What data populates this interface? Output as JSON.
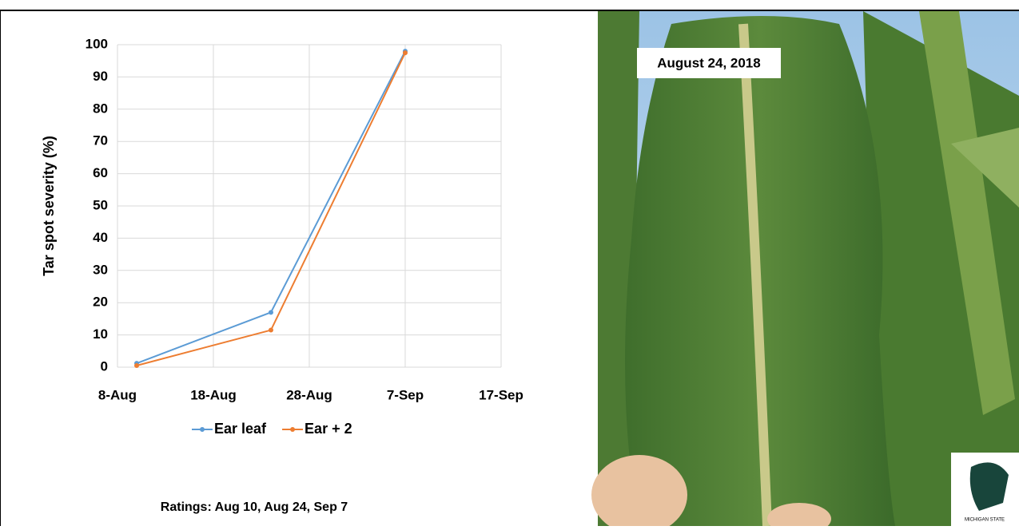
{
  "chart_data": {
    "type": "line",
    "y_label": "Tar spot severity (%)",
    "x": [
      "10-Aug",
      "24-Aug",
      "7-Sep"
    ],
    "series": [
      {
        "name": "Ear leaf",
        "color": "#5b9bd5",
        "values": [
          1.2,
          17,
          98
        ]
      },
      {
        "name": "Ear + 2",
        "color": "#ed7d31",
        "values": [
          0.5,
          11.5,
          97.5
        ]
      }
    ],
    "xlim": [
      "8-Aug",
      "17-Sep"
    ],
    "xticks": [
      "8-Aug",
      "18-Aug",
      "28-Aug",
      "7-Sep",
      "17-Sep"
    ],
    "ylim": [
      0,
      100
    ],
    "yticks": [
      0,
      10,
      20,
      30,
      40,
      50,
      60,
      70,
      80,
      90,
      100
    ],
    "grid": true,
    "legend": "bottom",
    "annotation": "Ratings: Aug 10, Aug 24, Sep 7"
  },
  "photo": {
    "caption": "August 24, 2018",
    "logo_text": "MICHIGAN STATE"
  }
}
